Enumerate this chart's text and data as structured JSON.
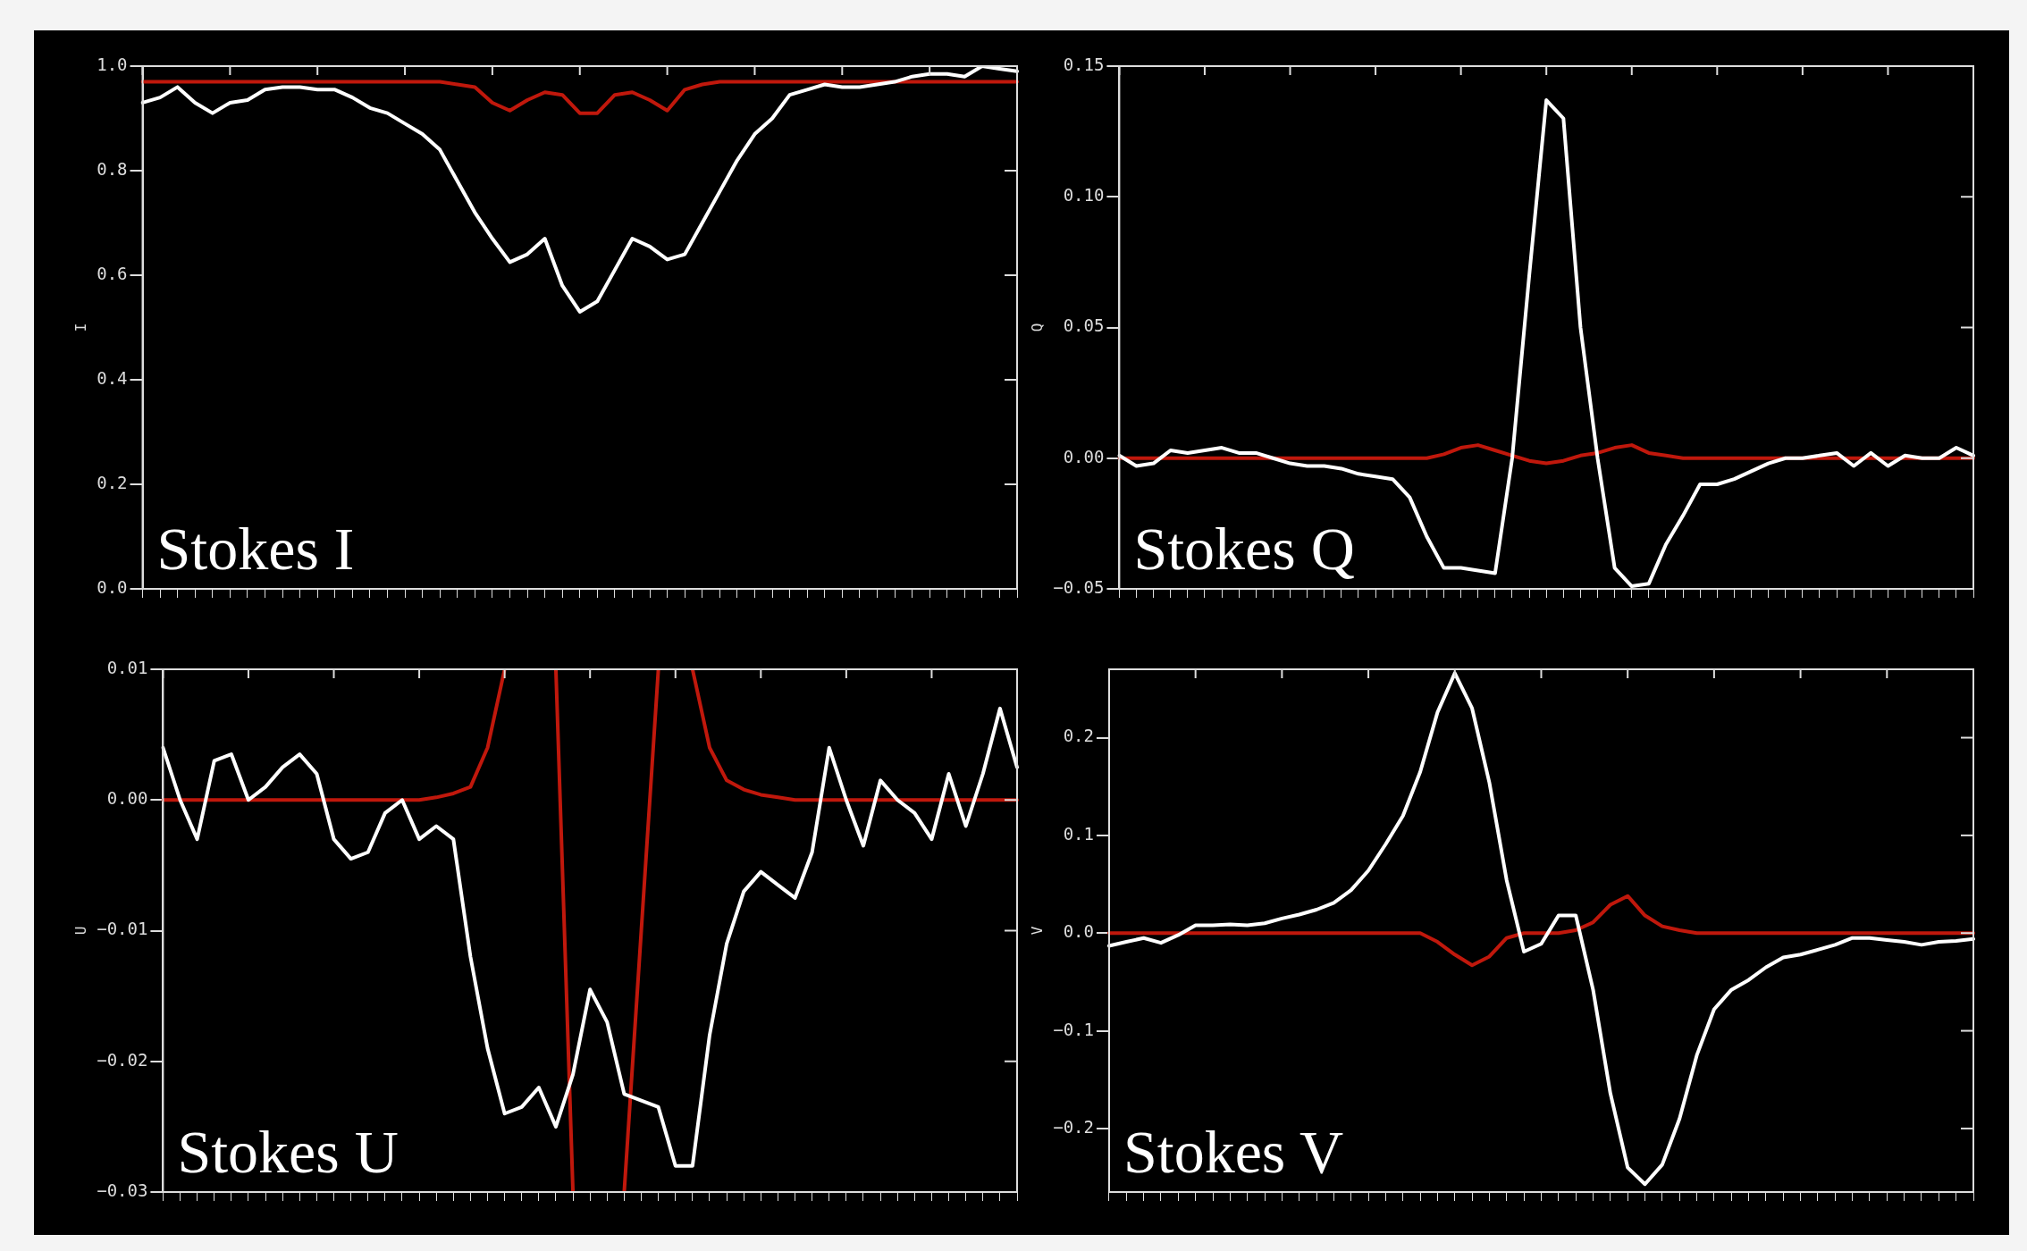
{
  "chart_data": [
    {
      "type": "line",
      "ylabel": "I",
      "annotations": [
        "Stokes I"
      ],
      "categories": [
        null,
        null,
        null,
        null,
        null,
        null,
        null,
        null,
        null,
        null,
        null,
        null,
        null,
        null,
        null,
        null,
        null,
        null,
        null,
        null,
        null,
        null,
        null,
        null,
        null,
        null,
        null,
        null,
        null,
        null,
        null,
        null,
        null,
        null,
        null,
        null,
        null,
        null,
        null,
        null,
        null,
        null,
        null,
        null,
        null,
        null,
        null,
        null,
        null,
        null,
        null
      ],
      "ylim": [
        0,
        1
      ],
      "yticks": [
        {
          "value": 0,
          "label": "0.0"
        },
        {
          "value": 0.2,
          "label": "0.2"
        },
        {
          "value": 0.4,
          "label": "0.4"
        },
        {
          "value": 0.6,
          "label": "0.6"
        },
        {
          "value": 0.8,
          "label": "0.8"
        },
        {
          "value": 1,
          "label": "1.0"
        }
      ],
      "tick_labels": "y",
      "marker": "none",
      "series": [
        {
          "color": "#ffffff",
          "values": [
            0.93,
            0.94,
            0.96,
            0.93,
            0.91,
            0.93,
            0.935,
            0.955,
            0.96,
            0.96,
            0.955,
            0.955,
            0.94,
            0.92,
            0.91,
            0.89,
            0.87,
            0.84,
            0.78,
            0.72,
            0.67,
            0.625,
            0.64,
            0.67,
            0.58,
            0.53,
            0.55,
            0.61,
            0.67,
            0.655,
            0.63,
            0.64,
            0.7,
            0.76,
            0.82,
            0.87,
            0.9,
            0.945,
            0.955,
            0.965,
            0.96,
            0.96,
            0.965,
            0.97,
            0.98,
            0.985,
            0.985,
            0.98,
            1.0,
            0.995,
            0.99
          ]
        },
        {
          "color": "#c0180c",
          "values": [
            0.97,
            0.97,
            0.97,
            0.97,
            0.97,
            0.97,
            0.97,
            0.97,
            0.97,
            0.97,
            0.97,
            0.97,
            0.97,
            0.97,
            0.97,
            0.97,
            0.97,
            0.97,
            0.965,
            0.96,
            0.93,
            0.915,
            0.935,
            0.95,
            0.945,
            0.91,
            0.91,
            0.945,
            0.95,
            0.935,
            0.915,
            0.955,
            0.965,
            0.97,
            0.97,
            0.97,
            0.97,
            0.97,
            0.97,
            0.97,
            0.97,
            0.97,
            0.97,
            0.97,
            0.97,
            0.97,
            0.97,
            0.97,
            0.97,
            0.97,
            0.97
          ]
        }
      ]
    },
    {
      "type": "line",
      "ylabel": "Q",
      "annotations": [
        "Stokes Q"
      ],
      "categories": [
        null,
        null,
        null,
        null,
        null,
        null,
        null,
        null,
        null,
        null,
        null,
        null,
        null,
        null,
        null,
        null,
        null,
        null,
        null,
        null,
        null,
        null,
        null,
        null,
        null,
        null,
        null,
        null,
        null,
        null,
        null,
        null,
        null,
        null,
        null,
        null,
        null,
        null,
        null,
        null,
        null,
        null,
        null,
        null,
        null,
        null,
        null,
        null,
        null,
        null,
        null
      ],
      "ylim": [
        -0.05,
        0.15
      ],
      "yticks": [
        {
          "value": -0.05,
          "label": "−0.05"
        },
        {
          "value": 0,
          "label": "0.00"
        },
        {
          "value": 0.05,
          "label": "0.05"
        },
        {
          "value": 0.1,
          "label": "0.10"
        },
        {
          "value": 0.15,
          "label": "0.15"
        }
      ],
      "tick_labels": "y",
      "marker": "none",
      "series": [
        {
          "color": "#ffffff",
          "values": [
            0.001,
            -0.003,
            -0.002,
            0.003,
            0.002,
            0.003,
            0.004,
            0.002,
            0.002,
            0.0,
            -0.002,
            -0.003,
            -0.003,
            -0.004,
            -0.006,
            -0.007,
            -0.008,
            -0.015,
            -0.03,
            -0.042,
            -0.042,
            -0.043,
            -0.044,
            0.0,
            0.07,
            0.137,
            0.13,
            0.05,
            0.0,
            -0.042,
            -0.049,
            -0.048,
            -0.033,
            -0.022,
            -0.01,
            -0.01,
            -0.008,
            -0.005,
            -0.002,
            0.0,
            0.0,
            0.001,
            0.002,
            -0.003,
            0.002,
            -0.003,
            0.001,
            0.0,
            0.0,
            0.004,
            0.001
          ]
        },
        {
          "color": "#c0180c",
          "values": [
            0,
            0,
            0,
            0,
            0,
            0,
            0,
            0,
            0,
            0,
            0,
            0,
            0,
            0,
            0,
            0,
            0,
            0,
            0,
            0.0015,
            0.004,
            0.005,
            0.003,
            0.001,
            -0.001,
            -0.002,
            -0.001,
            0.001,
            0.002,
            0.004,
            0.005,
            0.002,
            0.001,
            0,
            0,
            0,
            0,
            0,
            0,
            0,
            0,
            0,
            0,
            0,
            0,
            0,
            0,
            0,
            0,
            0,
            0
          ]
        }
      ]
    },
    {
      "type": "line",
      "ylabel": "U",
      "annotations": [
        "Stokes U"
      ],
      "categories": [
        null,
        null,
        null,
        null,
        null,
        null,
        null,
        null,
        null,
        null,
        null,
        null,
        null,
        null,
        null,
        null,
        null,
        null,
        null,
        null,
        null,
        null,
        null,
        null,
        null,
        null,
        null,
        null,
        null,
        null,
        null,
        null,
        null,
        null,
        null,
        null,
        null,
        null,
        null,
        null,
        null,
        null,
        null,
        null,
        null,
        null,
        null,
        null,
        null,
        null,
        null
      ],
      "ylim": [
        -0.03,
        0.01
      ],
      "yticks": [
        {
          "value": -0.03,
          "label": "−0.03"
        },
        {
          "value": -0.02,
          "label": "−0.02"
        },
        {
          "value": -0.01,
          "label": "−0.01"
        },
        {
          "value": 0,
          "label": "0.00"
        },
        {
          "value": 0.01,
          "label": "0.01"
        }
      ],
      "tick_labels": "y",
      "marker": "none",
      "series": [
        {
          "color": "#ffffff",
          "values": [
            0.004,
            0.0,
            -0.003,
            0.003,
            0.0035,
            0.0,
            0.001,
            0.0025,
            0.0035,
            0.002,
            -0.003,
            -0.0045,
            -0.004,
            -0.001,
            0.0,
            -0.003,
            -0.002,
            -0.003,
            -0.012,
            -0.019,
            -0.024,
            -0.0235,
            -0.022,
            -0.025,
            -0.021,
            -0.0145,
            -0.017,
            -0.0225,
            -0.023,
            -0.0235,
            -0.028,
            -0.028,
            -0.018,
            -0.011,
            -0.007,
            -0.0055,
            -0.0065,
            -0.0075,
            -0.004,
            0.004,
            0.0,
            -0.0035,
            0.0015,
            0.0,
            -0.001,
            -0.003,
            0.002,
            -0.002,
            0.002,
            0.007,
            0.0025
          ]
        },
        {
          "color": "#c0180c",
          "values": [
            0,
            0,
            0,
            0,
            0,
            0,
            0,
            0,
            0,
            0,
            0,
            0,
            0,
            0,
            0,
            0,
            0.0002,
            0.0005,
            0.001,
            0.004,
            0.01,
            null,
            null,
            0.01,
            -0.03,
            null,
            null,
            -0.03,
            -0.01,
            0.01,
            null,
            0.01,
            0.004,
            0.0015,
            0.0008,
            0.0004,
            0.0002,
            0,
            0,
            0,
            0,
            0,
            0,
            0,
            0,
            0,
            0,
            0,
            0,
            0,
            0
          ]
        }
      ]
    },
    {
      "type": "line",
      "ylabel": "V",
      "annotations": [
        "Stokes V"
      ],
      "categories": [
        null,
        null,
        null,
        null,
        null,
        null,
        null,
        null,
        null,
        null,
        null,
        null,
        null,
        null,
        null,
        null,
        null,
        null,
        null,
        null,
        null,
        null,
        null,
        null,
        null,
        null,
        null,
        null,
        null,
        null,
        null,
        null,
        null,
        null,
        null,
        null,
        null,
        null,
        null,
        null,
        null,
        null,
        null,
        null,
        null,
        null,
        null,
        null,
        null,
        null,
        null
      ],
      "ylim": [
        -0.265,
        0.27
      ],
      "yticks": [
        {
          "value": -0.2,
          "label": "−0.2"
        },
        {
          "value": -0.1,
          "label": "−0.1"
        },
        {
          "value": 0,
          "label": "0.0"
        },
        {
          "value": 0.1,
          "label": "0.1"
        },
        {
          "value": 0.2,
          "label": "0.2"
        }
      ],
      "tick_labels": "y",
      "marker": "none",
      "series": [
        {
          "color": "#ffffff",
          "values": [
            -0.013,
            -0.009,
            -0.005,
            -0.01,
            -0.002,
            0.008,
            0.008,
            0.009,
            0.008,
            0.01,
            0.015,
            0.019,
            0.024,
            0.031,
            0.044,
            0.064,
            0.091,
            0.12,
            0.165,
            0.226,
            0.266,
            0.23,
            0.154,
            0.054,
            -0.019,
            -0.011,
            0.018,
            0.018,
            -0.058,
            -0.164,
            -0.24,
            -0.257,
            -0.237,
            -0.19,
            -0.125,
            -0.078,
            -0.058,
            -0.048,
            -0.035,
            -0.025,
            -0.022,
            -0.017,
            -0.012,
            -0.005,
            -0.005,
            -0.007,
            -0.009,
            -0.012,
            -0.009,
            -0.008,
            -0.006
          ]
        },
        {
          "color": "#c0180c",
          "values": [
            0,
            0,
            0,
            0,
            0,
            0,
            0,
            0,
            0,
            0,
            0,
            0,
            0,
            0,
            0,
            0,
            0,
            0,
            0,
            -0.009,
            -0.022,
            -0.033,
            -0.024,
            -0.005,
            0,
            0,
            0,
            0.003,
            0.011,
            0.029,
            0.038,
            0.018,
            0.007,
            0.003,
            0,
            0,
            0,
            0,
            0,
            0,
            0,
            0,
            0,
            0,
            0,
            0,
            0,
            0,
            0,
            0,
            0
          ]
        }
      ]
    }
  ]
}
